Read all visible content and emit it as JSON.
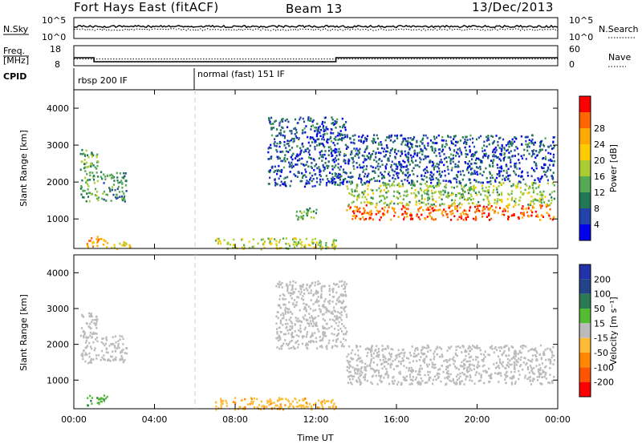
{
  "header": {
    "station": "Fort Hays East (fitACF)",
    "beam": "Beam 13",
    "date": "13/Dec/2013"
  },
  "panels": {
    "nsky_label": "N.Sky",
    "nsearch_label": "N.Search",
    "freq_label_line1": "Freq.",
    "freq_label_line2": "[MHz]",
    "nave_label": "Nave",
    "cpid_label": "CPID",
    "nsky_ticks": [
      "10^5",
      "10^0"
    ],
    "nsearch_ticks": [
      "10^5",
      "10^0"
    ],
    "freq_ticks": [
      "18",
      "8"
    ],
    "nave_ticks": [
      "60",
      "0"
    ],
    "cpid_segments": [
      {
        "label": "rbsp 200 IF",
        "start_hour": 0
      },
      {
        "label": "normal (fast) 151 IF",
        "start_hour": 6
      }
    ]
  },
  "axes": {
    "xlabel": "Time UT",
    "ylabel": "Slant Range [km]",
    "x_ticks": [
      "00:00",
      "04:00",
      "08:00",
      "12:00",
      "16:00",
      "20:00",
      "00:00"
    ],
    "y_ticks": [
      "1000",
      "2000",
      "3000",
      "4000"
    ]
  },
  "colorbars": {
    "power": {
      "label": "Power [dB]",
      "ticks": [
        "4",
        "8",
        "12",
        "16",
        "20",
        "24",
        "28"
      ],
      "colors": [
        "#0000ee",
        "#2244aa",
        "#227755",
        "#55aa55",
        "#aacc33",
        "#ffcc00",
        "#ffaa00",
        "#ff6600",
        "#ff0000"
      ]
    },
    "velocity": {
      "label": "Velocity [m s⁻¹]",
      "ticks": [
        "200",
        "100",
        "50",
        "15",
        "-15",
        "-50",
        "-100",
        "-200"
      ],
      "colors": [
        "#2233aa",
        "#224488",
        "#2a7a55",
        "#55bb33",
        "#bbbbbb",
        "#ffbb33",
        "#ff8800",
        "#ff5500",
        "#ff0000"
      ]
    }
  },
  "chart_data": {
    "type": "heatmap",
    "title": "Fort Hays East (fitACF) Beam 13 13/Dec/2013",
    "xlabel": "Time UT",
    "ylabel": "Slant Range [km]",
    "xlim_hours": [
      0,
      24
    ],
    "ylim_km": [
      200,
      4500
    ],
    "series": [
      {
        "name": "Power [dB]",
        "bands": [
          {
            "t0": 0.3,
            "t1": 1.2,
            "r0": 1500,
            "r1": 2900,
            "value": 12
          },
          {
            "t0": 1.3,
            "t1": 2.6,
            "r0": 1500,
            "r1": 2300,
            "value": 10
          },
          {
            "t0": 0.5,
            "t1": 1.6,
            "r0": 250,
            "r1": 550,
            "value": 24
          },
          {
            "t0": 1.6,
            "t1": 2.8,
            "r0": 200,
            "r1": 400,
            "value": 20
          },
          {
            "t0": 9.6,
            "t1": 13.5,
            "r0": 1900,
            "r1": 3800,
            "value": 6
          },
          {
            "t0": 11.0,
            "t1": 12.0,
            "r0": 1000,
            "r1": 1400,
            "value": 12
          },
          {
            "t0": 13.5,
            "t1": 23.8,
            "r0": 1000,
            "r1": 1400,
            "value": 26
          },
          {
            "t0": 13.5,
            "t1": 23.8,
            "r0": 1400,
            "r1": 2000,
            "value": 14
          },
          {
            "t0": 13.5,
            "t1": 23.8,
            "r0": 2000,
            "r1": 3300,
            "value": 6
          },
          {
            "t0": 7.0,
            "t1": 13.0,
            "r0": 200,
            "r1": 500,
            "value": 16
          }
        ]
      },
      {
        "name": "Velocity [m s⁻¹]",
        "bands": [
          {
            "t0": 0.3,
            "t1": 1.2,
            "r0": 1500,
            "r1": 2900,
            "value": 0
          },
          {
            "t0": 1.3,
            "t1": 2.6,
            "r0": 1500,
            "r1": 2300,
            "value": 0
          },
          {
            "t0": 0.6,
            "t1": 1.7,
            "r0": 300,
            "r1": 600,
            "value": 40
          },
          {
            "t0": 10.0,
            "t1": 13.5,
            "r0": 1900,
            "r1": 3800,
            "value": 0
          },
          {
            "t0": 13.5,
            "t1": 23.8,
            "r0": 900,
            "r1": 2000,
            "value": 0
          },
          {
            "t0": 7.0,
            "t1": 13.0,
            "r0": 200,
            "r1": 550,
            "value": -40
          }
        ]
      }
    ],
    "nsky": "≈10^3 (flat)",
    "frequency_mhz": [
      {
        "t0": 0,
        "t1": 1,
        "value": 12
      },
      {
        "t0": 1,
        "t1": 13,
        "value": 10
      },
      {
        "t0": 13,
        "t1": 24,
        "value": 12
      }
    ],
    "nave": [
      {
        "t0": 0,
        "t1": 24,
        "value": 20
      }
    ]
  }
}
